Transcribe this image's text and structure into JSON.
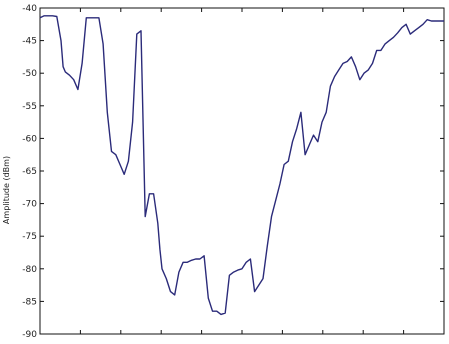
{
  "chart_data": {
    "type": "line",
    "title": "",
    "xlabel": "",
    "ylabel": "Amplitude (dBm)",
    "ylim": [
      -90,
      -40
    ],
    "y_ticks": [
      -40,
      -45,
      -50,
      -55,
      -60,
      -65,
      -70,
      -75,
      -80,
      -85,
      -90
    ],
    "x_tick_count": 9,
    "x_range": [
      0,
      96
    ],
    "grid": false,
    "line_color": "#2b2b7a",
    "series": [
      {
        "x": [
          0,
          1,
          2,
          3,
          4,
          5,
          5.5,
          6,
          7,
          8,
          9,
          10,
          11,
          12,
          13,
          13.5,
          14,
          15,
          16,
          17,
          18,
          19,
          20,
          21,
          22,
          23,
          24,
          25,
          26,
          27,
          28,
          28.5,
          29,
          30,
          31,
          32,
          33,
          34,
          35,
          36,
          37,
          38,
          39,
          40,
          41,
          42,
          43,
          44,
          45,
          46,
          47,
          48,
          49,
          50,
          51,
          52,
          53,
          54,
          55,
          56,
          57,
          58,
          59,
          60,
          61,
          62,
          63,
          64,
          65,
          66,
          67,
          68,
          69,
          70,
          71,
          72,
          73,
          74,
          75,
          76,
          77,
          78,
          79,
          80,
          81,
          82,
          83,
          84,
          85,
          86,
          87,
          88,
          89,
          90,
          91,
          92,
          93,
          94,
          95,
          96
        ],
        "y": [
          -41.5,
          -41.2,
          -41.2,
          -41.2,
          -41.3,
          -45,
          -49,
          -49.8,
          -50.3,
          -51,
          -52.5,
          -48.5,
          -41.5,
          -41.5,
          -41.5,
          -41.5,
          -41.5,
          -45.5,
          -56,
          -62,
          -62.5,
          -64,
          -65.5,
          -63.5,
          -57.5,
          -44,
          -43.5,
          -72,
          -68.5,
          -68.5,
          -73,
          -77,
          -80,
          -81.5,
          -83.5,
          -84,
          -80.5,
          -79,
          -79,
          -78.7,
          -78.5,
          -78.5,
          -78,
          -84.5,
          -86.5,
          -86.5,
          -87,
          -86.8,
          -81,
          -80.5,
          -80.2,
          -80,
          -79,
          -78.5,
          -83.5,
          -82.5,
          -81.5,
          -76.5,
          -72,
          -69.5,
          -67,
          -64,
          -63.5,
          -60.5,
          -58.5,
          -56,
          -62.5,
          -61,
          -59.5,
          -60.5,
          -57.5,
          -56,
          -52,
          -50.5,
          -49.5,
          -48.5,
          -48.2,
          -47.5,
          -49,
          -51,
          -50,
          -49.5,
          -48.5,
          -46.5,
          -46.5,
          -45.5,
          -45,
          -44.5,
          -43.8,
          -43,
          -42.5,
          -44,
          -43.5,
          -43,
          -42.5,
          -41.8,
          -42,
          -42,
          -42,
          -42
        ]
      }
    ]
  }
}
